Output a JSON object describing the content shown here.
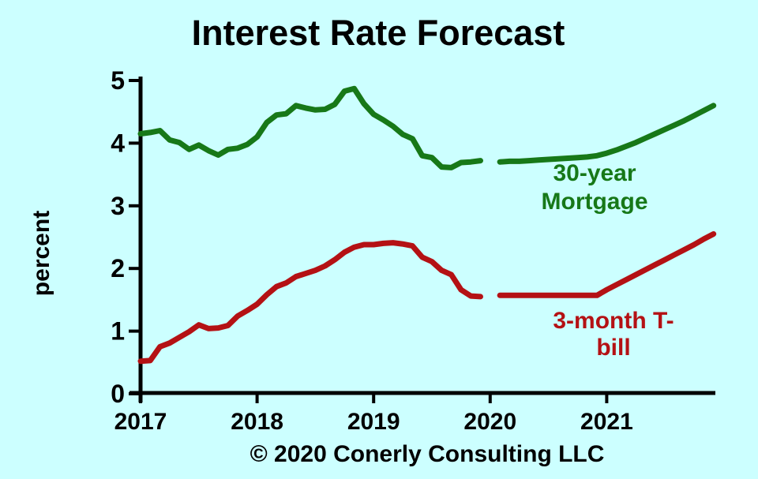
{
  "background_color": "#CCFFFF",
  "chart_data": {
    "type": "line",
    "title": "Interest Rate Forecast",
    "ylabel": "percent",
    "footer": "© 2020 Conerly Consulting LLC",
    "xlim": [
      2017,
      2022
    ],
    "ylim": [
      0,
      5
    ],
    "x_ticks": [
      "2017",
      "2018",
      "2019",
      "2020",
      "2021"
    ],
    "y_ticks": [
      "0",
      "1",
      "2",
      "3",
      "4",
      "5"
    ],
    "grid": false,
    "legend": "inline-labels",
    "series": [
      {
        "name": "30-year Mortgage",
        "color": "#177818",
        "label_lines": [
          "30-year",
          "Mortgage"
        ],
        "segments": [
          {
            "x_start": 2017.0,
            "x_step": 0.083333,
            "values": [
              4.15,
              4.17,
              4.2,
              4.05,
              4.01,
              3.9,
              3.97,
              3.88,
              3.81,
              3.9,
              3.92,
              3.98,
              4.1,
              4.33,
              4.45,
              4.47,
              4.6,
              4.56,
              4.53,
              4.54,
              4.62,
              4.83,
              4.87,
              4.63,
              4.46,
              4.37,
              4.27,
              4.14,
              4.07,
              3.8,
              3.77,
              3.62,
              3.61,
              3.69,
              3.7,
              3.72
            ]
          },
          {
            "x_start": 2020.083333,
            "x_step": 0.083333,
            "values": [
              3.7,
              3.71,
              3.71,
              3.72,
              3.73,
              3.74,
              3.75,
              3.76,
              3.77,
              3.78,
              3.8,
              3.84,
              3.89,
              3.95,
              4.01,
              4.08,
              4.15,
              4.22,
              4.29,
              4.36,
              4.44,
              4.52,
              4.6
            ]
          }
        ]
      },
      {
        "name": "3-month T-bill",
        "color": "#B41114",
        "label_lines": [
          "3-month T-",
          "bill"
        ],
        "segments": [
          {
            "x_start": 2017.0,
            "x_step": 0.083333,
            "values": [
              0.52,
              0.53,
              0.75,
              0.81,
              0.9,
              0.99,
              1.1,
              1.04,
              1.05,
              1.09,
              1.24,
              1.33,
              1.43,
              1.58,
              1.71,
              1.77,
              1.87,
              1.92,
              1.97,
              2.04,
              2.14,
              2.26,
              2.34,
              2.38,
              2.38,
              2.4,
              2.41,
              2.39,
              2.36,
              2.18,
              2.11,
              1.97,
              1.9,
              1.66,
              1.56,
              1.55
            ]
          },
          {
            "x_start": 2020.083333,
            "x_step": 0.083333,
            "values": [
              1.57,
              1.57,
              1.57,
              1.57,
              1.57,
              1.57,
              1.57,
              1.57,
              1.57,
              1.57,
              1.57,
              1.66,
              1.74,
              1.82,
              1.9,
              1.98,
              2.06,
              2.14,
              2.22,
              2.3,
              2.38,
              2.47,
              2.55
            ]
          }
        ]
      }
    ]
  }
}
